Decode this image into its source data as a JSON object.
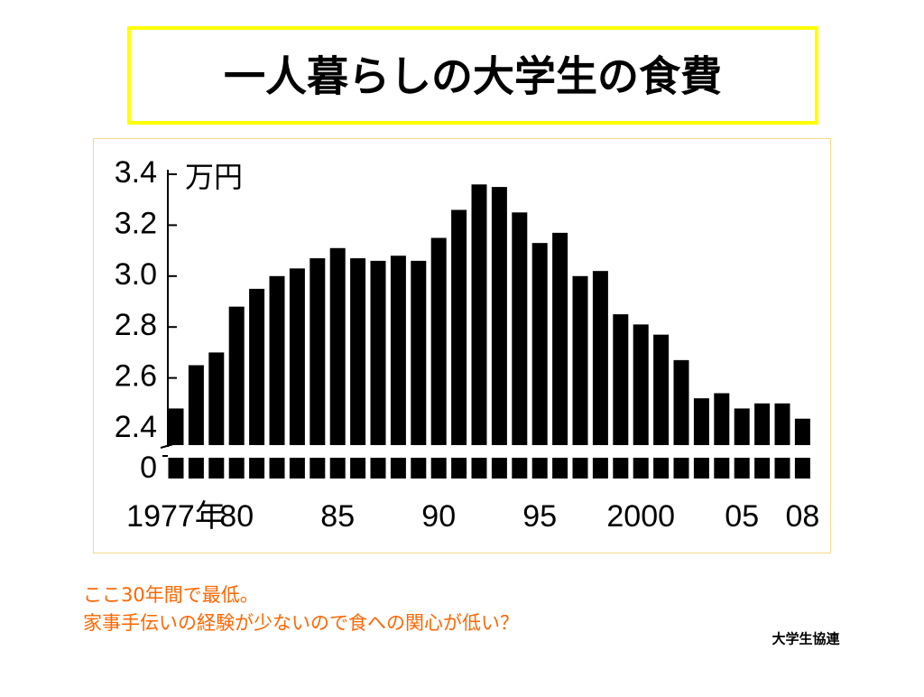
{
  "title": "一人暮らしの大学生の食費",
  "chart_data": {
    "type": "bar",
    "unit_label": "万円",
    "categories": [
      "1977年",
      null,
      null,
      "80",
      null,
      null,
      null,
      null,
      "85",
      null,
      null,
      null,
      null,
      "90",
      null,
      null,
      null,
      null,
      "95",
      null,
      null,
      null,
      null,
      "2000",
      null,
      null,
      null,
      null,
      "05",
      null,
      null,
      "08"
    ],
    "values": [
      2.48,
      2.65,
      2.7,
      2.88,
      2.95,
      3.0,
      3.03,
      3.07,
      3.11,
      3.07,
      3.06,
      3.08,
      3.06,
      3.15,
      3.26,
      3.36,
      3.35,
      3.25,
      3.13,
      3.17,
      3.0,
      3.02,
      2.85,
      2.81,
      2.77,
      2.67,
      2.52,
      2.54,
      2.48,
      2.5,
      2.5,
      2.44
    ],
    "color": "#000000",
    "ylim": [
      2.4,
      3.4
    ],
    "yticks": [
      0,
      2.4,
      2.6,
      2.8,
      3.2,
      3.4,
      {
        "value": 3,
        "label": "3.0"
      }
    ],
    "axis_break": true
  },
  "notes": [
    "ここ30年間で最低。",
    "家事手伝いの経験が少ないので食への関心が低い？"
  ],
  "source": "大学生協連"
}
